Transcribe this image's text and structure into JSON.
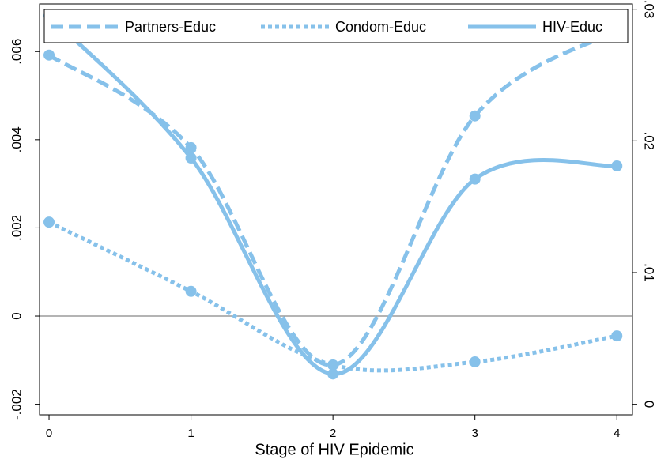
{
  "chart_data": {
    "type": "line",
    "x_label": "Stage of HIV Epidemic",
    "x": [
      0,
      1,
      2,
      3,
      4
    ],
    "xlim": [
      -0.067,
      4.11
    ],
    "xticks": [
      0,
      1,
      2,
      3,
      4
    ],
    "ylim": [
      -0.00224,
      0.00708
    ],
    "yticks": [
      {
        "value": -0.002,
        "label": "-.002"
      },
      0,
      {
        "value": 0.002,
        "label": ".002"
      },
      {
        "value": 0.004,
        "label": ".004"
      },
      {
        "value": 0.006,
        "label": ".006"
      }
    ],
    "y2lim": [
      -0.0008,
      0.0304
    ],
    "y2ticks": [
      0,
      {
        "value": 0.01,
        "label": ".01"
      },
      {
        "value": 0.02,
        "label": ".02"
      },
      {
        "value": 0.03,
        "label": ".03"
      }
    ],
    "series": [
      {
        "name": "Partners-Educ",
        "color": "#86c1ea",
        "dash": "dashed",
        "values": [
          0.00592,
          0.00382,
          -0.00111,
          0.00454,
          0.00648
        ]
      },
      {
        "name": "Condom-Educ",
        "color": "#86c1ea",
        "dash": "dotted",
        "values": [
          0.00213,
          0.00056,
          -0.00111,
          -0.00104,
          -0.00045
        ]
      },
      {
        "name": "HIV-Educ",
        "color": "#86c1ea",
        "dash": "solid",
        "axis": "y2",
        "values": [
          0.0295,
          0.0187,
          0.0023,
          0.0171,
          0.0181
        ]
      }
    ]
  }
}
